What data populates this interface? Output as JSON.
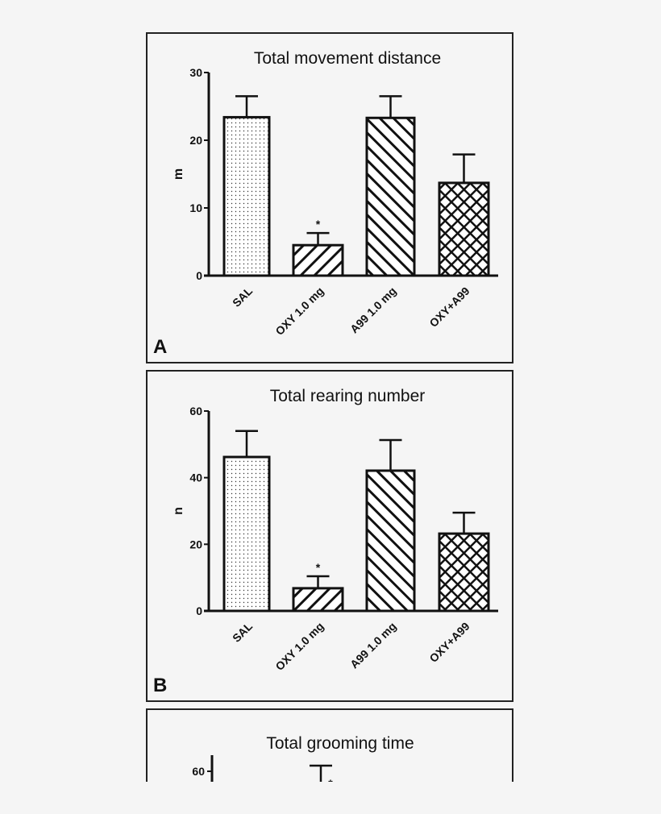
{
  "chart_data": [
    {
      "type": "bar",
      "panel_label": "A",
      "title": "Total movement distance",
      "ylabel": "m",
      "xlabel": "",
      "ylim": [
        0,
        30
      ],
      "yticks": [
        0,
        10,
        20,
        30
      ],
      "categories": [
        "SAL",
        "OXY 1.0 mg",
        "A99 1.0 mg",
        "OXY+A99"
      ],
      "values": [
        23.4,
        4.5,
        23.3,
        13.7
      ],
      "error_upper": [
        26.5,
        6.3,
        26.5,
        17.9
      ],
      "annotations": [
        "",
        "*",
        "",
        ""
      ],
      "patterns": [
        "dots",
        "diagonal-up",
        "diagonal-down",
        "crosshatch"
      ],
      "grid": false
    },
    {
      "type": "bar",
      "panel_label": "B",
      "title": "Total rearing number",
      "ylabel": "n",
      "xlabel": "",
      "ylim": [
        0,
        60
      ],
      "yticks": [
        0,
        20,
        40,
        60
      ],
      "categories": [
        "SAL",
        "OXY 1.0 mg",
        "A99 1.0 mg",
        "OXY+A99"
      ],
      "values": [
        46.2,
        6.8,
        42.1,
        23.2
      ],
      "error_upper": [
        54.0,
        10.4,
        51.3,
        29.5
      ],
      "annotations": [
        "",
        "*",
        "",
        ""
      ],
      "patterns": [
        "dots",
        "diagonal-up",
        "diagonal-down",
        "crosshatch"
      ],
      "grid": false
    },
    {
      "type": "bar",
      "panel_label": "",
      "title": "Total grooming time",
      "ylabel": "",
      "yticks_visible": [
        60
      ],
      "annotations": [
        "",
        "*",
        "",
        ""
      ],
      "note_visible_marks": "partially visible; only top tick and one error cap shown"
    }
  ]
}
